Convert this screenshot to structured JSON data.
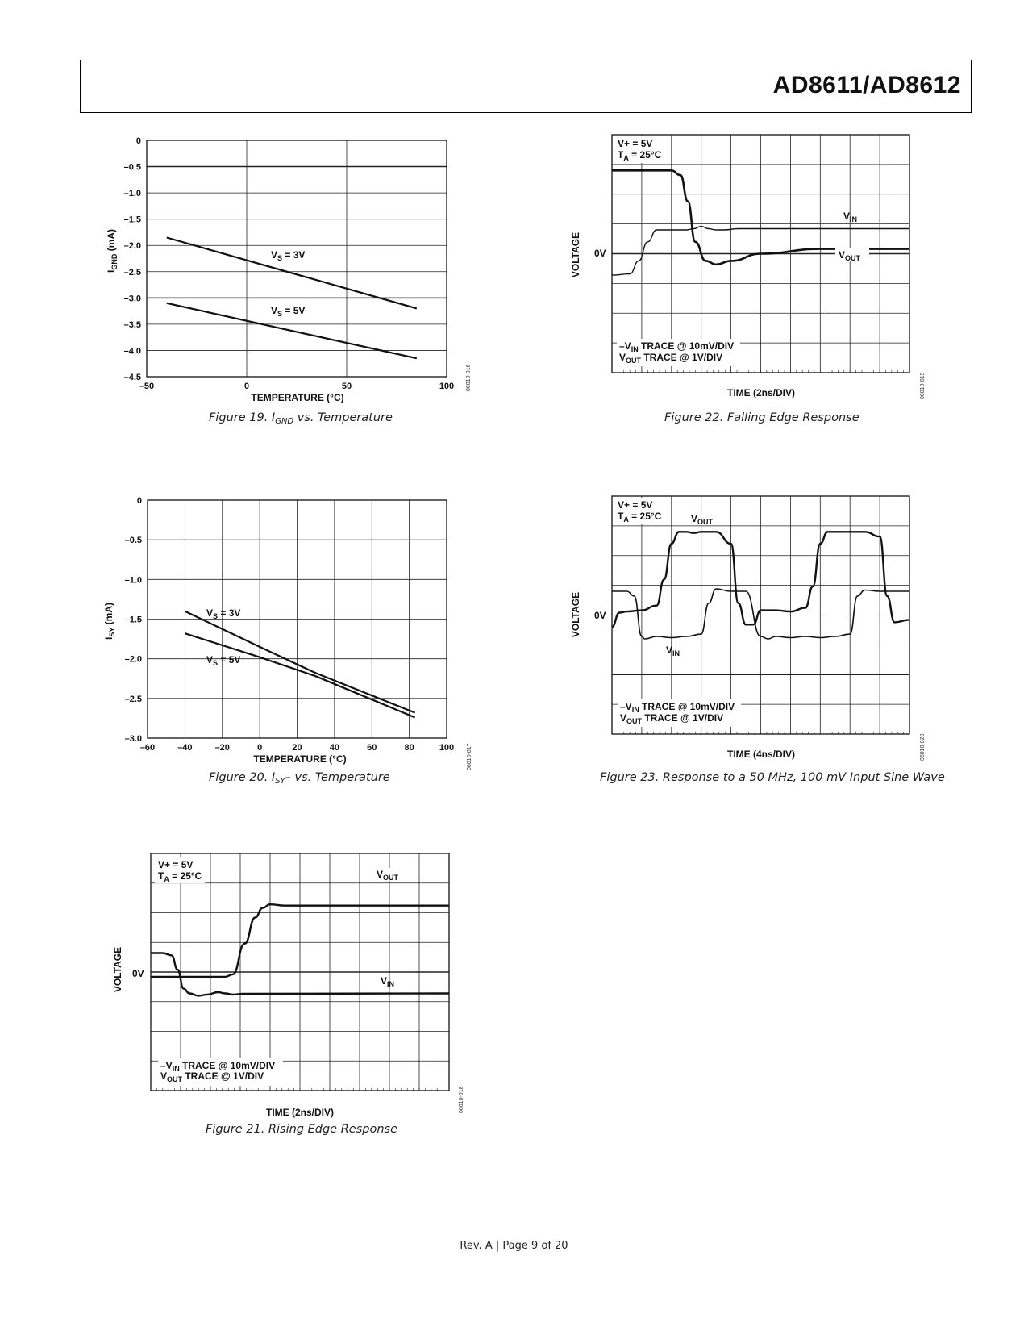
{
  "header": {
    "title": "AD8611/AD8612"
  },
  "footer": {
    "text": "Rev. A | Page 9 of 20"
  },
  "figures": {
    "fig19": {
      "caption": "Figure 19. I",
      "caption_sub": "GND",
      "caption_rest": " vs. Temperature",
      "code": "06010-016",
      "ylabel_main": "I",
      "ylabel_sub": "GND",
      "ylabel_rest": " (mA)",
      "xlabel": "TEMPERATURE (°C)",
      "xticks": [
        "–50",
        "0",
        "50",
        "100"
      ],
      "yticks": [
        "0",
        "–0.5",
        "–1.0",
        "–1.5",
        "–2.0",
        "–2.5",
        "–3.0",
        "–3.5",
        "–4.0",
        "–4.5"
      ],
      "series_labels": [
        {
          "main": "V",
          "sub": "S",
          "rest": " = 3V"
        },
        {
          "main": "V",
          "sub": "S",
          "rest": " = 5V"
        }
      ]
    },
    "fig20": {
      "caption": "Figure 20. I",
      "caption_sub": "SY",
      "caption_rest": "– vs. Temperature",
      "code": "06010-017",
      "ylabel_main": "I",
      "ylabel_sub": "SY",
      "ylabel_rest": " (mA)",
      "xlabel": "TEMPERATURE (°C)",
      "xticks": [
        "–60",
        "–40",
        "–20",
        "0",
        "20",
        "40",
        "60",
        "80",
        "100"
      ],
      "yticks": [
        "0",
        "–0.5",
        "–1.0",
        "–1.5",
        "–2.0",
        "–2.5",
        "–3.0"
      ],
      "series_labels": [
        {
          "main": "V",
          "sub": "S",
          "rest": " = 3V"
        },
        {
          "main": "V",
          "sub": "S",
          "rest": " = 5V"
        }
      ]
    },
    "fig21": {
      "caption": "Figure 21. Rising Edge Response",
      "code": "06010-018",
      "ylabel": "VOLTAGE",
      "zero": "0V",
      "xlabel": "TIME (2ns/DIV)",
      "cond1": "V+ = 5V",
      "cond2_main": "T",
      "cond2_sub": "A",
      "cond2_rest": " = 25°C",
      "vout_main": "V",
      "vout_sub": "OUT",
      "vin_main": "V",
      "vin_sub": "IN",
      "note1_pre": "–V",
      "note1_sub": "IN",
      "note1_rest": " TRACE @ 10mV/DIV",
      "note2_pre": "V",
      "note2_sub": "OUT",
      "note2_rest": " TRACE @ 1V/DIV"
    },
    "fig22": {
      "caption": "Figure 22. Falling Edge Response",
      "code": "06010-019",
      "ylabel": "VOLTAGE",
      "zero": "0V",
      "xlabel": "TIME (2ns/DIV)",
      "cond1": "V+ = 5V",
      "cond2_main": "T",
      "cond2_sub": "A",
      "cond2_rest": " = 25°C",
      "vout_main": "V",
      "vout_sub": "OUT",
      "vin_main": "V",
      "vin_sub": "IN",
      "note1_pre": "–V",
      "note1_sub": "IN",
      "note1_rest": " TRACE @ 10mV/DIV",
      "note2_pre": "V",
      "note2_sub": "OUT",
      "note2_rest": " TRACE @ 1V/DIV"
    },
    "fig23": {
      "caption": "Figure 23. Response to a 50 MHz, 100 mV Input Sine Wave",
      "code": "06010-020",
      "ylabel": "VOLTAGE",
      "zero": "0V",
      "xlabel": "TIME (4ns/DIV)",
      "cond1": "V+ = 5V",
      "cond2_main": "T",
      "cond2_sub": "A",
      "cond2_rest": " = 25°C",
      "vout_main": "V",
      "vout_sub": "OUT",
      "vin_main": "V",
      "vin_sub": "IN",
      "note1_pre": "–V",
      "note1_sub": "IN",
      "note1_rest": " TRACE @ 10mV/DIV",
      "note2_pre": "V",
      "note2_sub": "OUT",
      "note2_rest": " TRACE @ 1V/DIV"
    }
  },
  "chart_data": [
    {
      "type": "line",
      "xlabel": "TEMPERATURE (°C)",
      "ylabel": "IGND (mA)",
      "xlim": [
        -50,
        100
      ],
      "ylim": [
        -4.5,
        0
      ],
      "grid": true,
      "series": [
        {
          "name": "VS = 3V",
          "x": [
            -40,
            85
          ],
          "y": [
            -1.85,
            -3.2
          ]
        },
        {
          "name": "VS = 5V",
          "x": [
            -40,
            85
          ],
          "y": [
            -3.1,
            -4.15
          ]
        }
      ]
    },
    {
      "type": "line",
      "xlabel": "TEMPERATURE (°C)",
      "ylabel": "ISY (mA)",
      "xlim": [
        -60,
        100
      ],
      "ylim": [
        -3.0,
        0
      ],
      "grid": true,
      "series": [
        {
          "name": "VS = 3V",
          "x": [
            -40,
            0,
            30,
            83
          ],
          "y": [
            -1.4,
            -1.85,
            -2.18,
            -2.68
          ]
        },
        {
          "name": "VS = 5V",
          "x": [
            -40,
            0,
            30,
            83
          ],
          "y": [
            -1.68,
            -1.98,
            -2.22,
            -2.74
          ]
        }
      ]
    },
    {
      "type": "line",
      "xlabel": "TIME (2ns/DIV)",
      "ylabel": "VOLTAGE",
      "xlim": [
        0,
        20
      ],
      "ylim": [
        -5,
        5
      ],
      "grid": true,
      "series": [
        {
          "name": "VOUT",
          "x": [
            0,
            2,
            4,
            5,
            5.5,
            6.3,
            7,
            7.5,
            8,
            9,
            20
          ],
          "y": [
            -0.2,
            -0.2,
            -0.2,
            -0.2,
            -0.1,
            1.2,
            2.3,
            2.7,
            2.85,
            2.8,
            2.8
          ]
        },
        {
          "name": "VIN",
          "x": [
            0,
            0.8,
            1.4,
            1.8,
            2.2,
            2.6,
            3.2,
            3.8,
            4.5,
            5,
            5.5,
            6.2,
            20
          ],
          "y": [
            0.8,
            0.8,
            0.7,
            0.1,
            -0.7,
            -0.9,
            -1.0,
            -0.95,
            -0.85,
            -0.9,
            -0.95,
            -0.92,
            -0.9
          ]
        }
      ]
    },
    {
      "type": "line",
      "xlabel": "TIME (2ns/DIV)",
      "ylabel": "VOLTAGE",
      "xlim": [
        0,
        20
      ],
      "ylim": [
        -5,
        5
      ],
      "grid": true,
      "series": [
        {
          "name": "VOUT",
          "x": [
            0,
            3,
            4,
            4.6,
            5.1,
            5.6,
            6.3,
            7,
            8,
            10,
            14,
            20
          ],
          "y": [
            3.5,
            3.5,
            3.5,
            3.3,
            2.2,
            0.5,
            -0.3,
            -0.45,
            -0.3,
            0,
            0.2,
            0.2
          ]
        },
        {
          "name": "VIN",
          "x": [
            0,
            1.2,
            1.8,
            2.4,
            3,
            5,
            5.5,
            6,
            6.5,
            7,
            7.5,
            8.5,
            20
          ],
          "y": [
            -0.9,
            -0.85,
            -0.3,
            0.5,
            1.0,
            1.0,
            1.05,
            1.15,
            1.05,
            1.0,
            1.0,
            1.05,
            1.05
          ]
        }
      ]
    },
    {
      "type": "line",
      "xlabel": "TIME (4ns/DIV)",
      "ylabel": "VOLTAGE",
      "xlim": [
        0,
        20
      ],
      "ylim": [
        -5,
        5
      ],
      "grid": true,
      "series": [
        {
          "name": "VOUT",
          "x": [
            0,
            0.5,
            1,
            2,
            3,
            3.5,
            4,
            4.5,
            5,
            5.5,
            6,
            7,
            8,
            8.5,
            9,
            9.5,
            10,
            11,
            12,
            13,
            13.5,
            14,
            14.5,
            15,
            16,
            17,
            18,
            18.5,
            19,
            20
          ],
          "y": [
            -0.5,
            0.1,
            0.15,
            0.2,
            0.4,
            1.5,
            3,
            3.5,
            3.5,
            3.45,
            3.5,
            3.5,
            3,
            0.5,
            -0.4,
            -0.4,
            0.2,
            0.2,
            0.15,
            0.3,
            1.2,
            3,
            3.5,
            3.5,
            3.5,
            3.5,
            3.3,
            0.8,
            -0.3,
            -0.2
          ]
        },
        {
          "name": "VIN",
          "x": [
            0,
            1,
            1.5,
            2,
            2.2,
            3,
            4,
            5,
            6,
            6.5,
            7,
            8,
            9,
            10,
            10.5,
            11,
            12,
            13,
            14,
            15,
            16,
            16.5,
            17,
            18,
            20
          ],
          "y": [
            1,
            1,
            0.8,
            -0.9,
            -1.0,
            -0.9,
            -0.95,
            -0.9,
            -0.8,
            0.5,
            1.1,
            1.0,
            1.0,
            -0.9,
            -1.0,
            -0.9,
            -0.95,
            -0.9,
            -0.95,
            -0.9,
            -0.8,
            0.8,
            1.05,
            1.0,
            1.0
          ]
        }
      ]
    }
  ]
}
